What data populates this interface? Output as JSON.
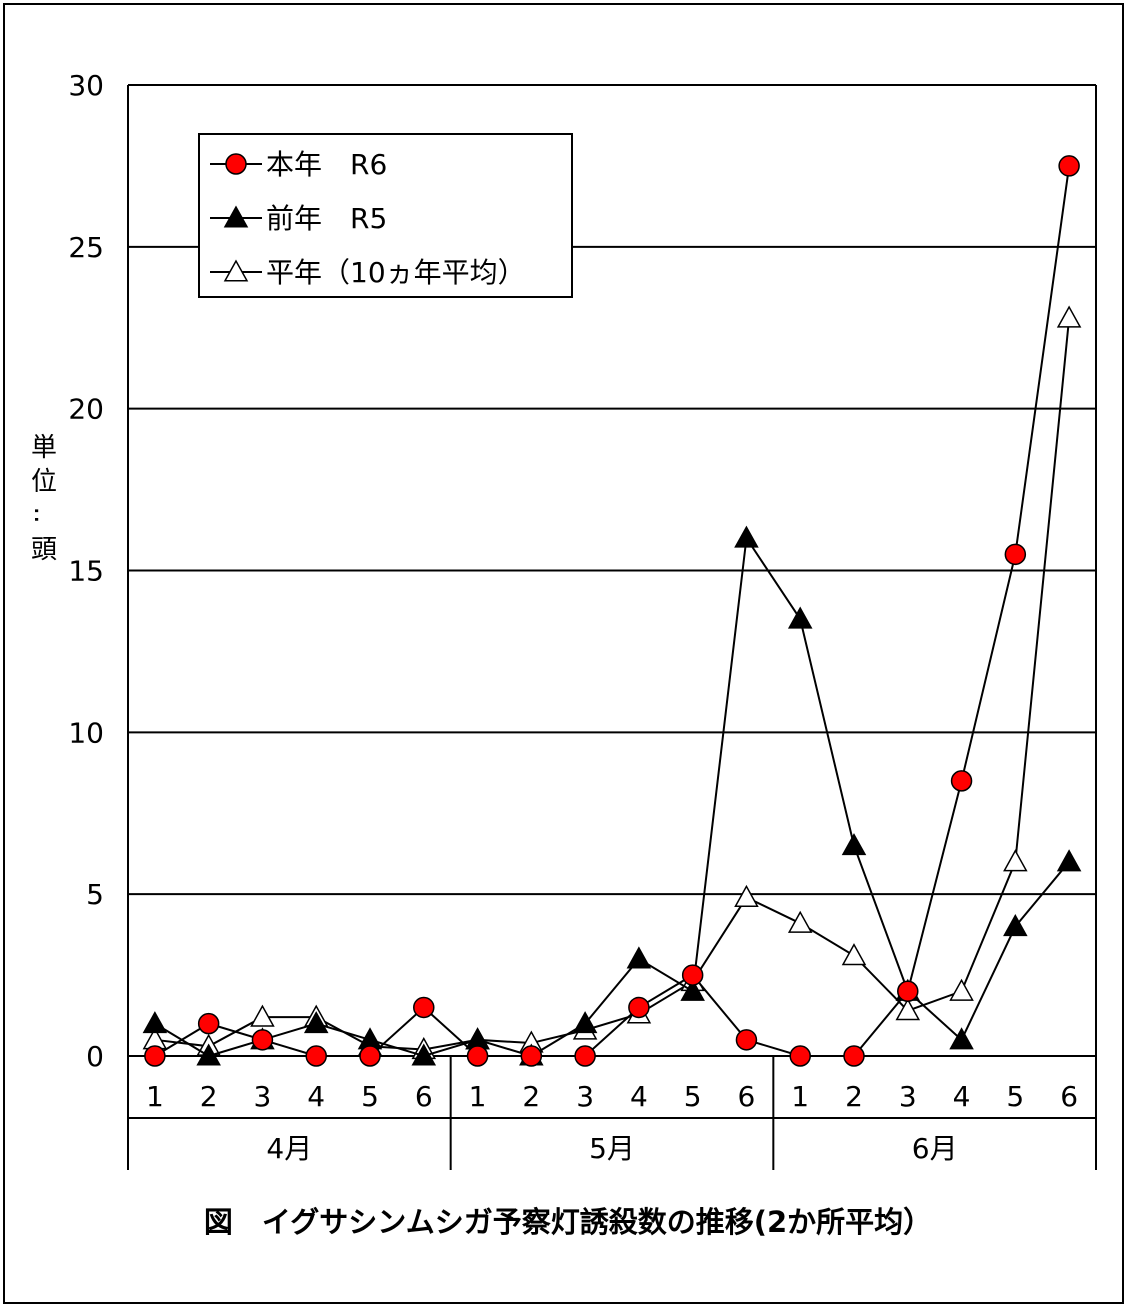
{
  "chart_data": {
    "type": "line",
    "title": "図　イグサシンムシガ予察灯誘殺数の推移(2か所平均）",
    "ylabel": "単位：頭",
    "ylim": [
      0,
      30
    ],
    "yticks": [
      "0",
      "5",
      "10",
      "15",
      "20",
      "25",
      "30"
    ],
    "grid": true,
    "legend_position": "top-left",
    "months": [
      {
        "label": "4月",
        "periods": [
          "1",
          "2",
          "3",
          "4",
          "5",
          "6"
        ]
      },
      {
        "label": "5月",
        "periods": [
          "1",
          "2",
          "3",
          "4",
          "5",
          "6"
        ]
      },
      {
        "label": "6月",
        "periods": [
          "1",
          "2",
          "3",
          "4",
          "5",
          "6"
        ]
      }
    ],
    "series": [
      {
        "name": "本年　R6",
        "marker": "circle",
        "marker_color": "#ff0000",
        "values": [
          0,
          1,
          0.5,
          0,
          0,
          1.5,
          0,
          0,
          0,
          1.5,
          2.5,
          0.5,
          0,
          0,
          2,
          8.5,
          15.5,
          27.5
        ]
      },
      {
        "name": "前年　R5",
        "marker": "triangle-filled",
        "marker_color": "#000000",
        "values": [
          1,
          0,
          0.5,
          1,
          0.5,
          0,
          0.5,
          0,
          1,
          3,
          2,
          16,
          13.5,
          6.5,
          2,
          0.5,
          4,
          6
        ]
      },
      {
        "name": "平年（10ヵ年平均）",
        "marker": "triangle-open",
        "marker_color": "#ffffff",
        "values": [
          0.5,
          0.3,
          1.2,
          1.2,
          0.3,
          0.2,
          0.5,
          0.4,
          0.8,
          1.3,
          2.3,
          4.9,
          4.1,
          3.1,
          1.4,
          2.0,
          6.0,
          22.8
        ]
      }
    ]
  }
}
